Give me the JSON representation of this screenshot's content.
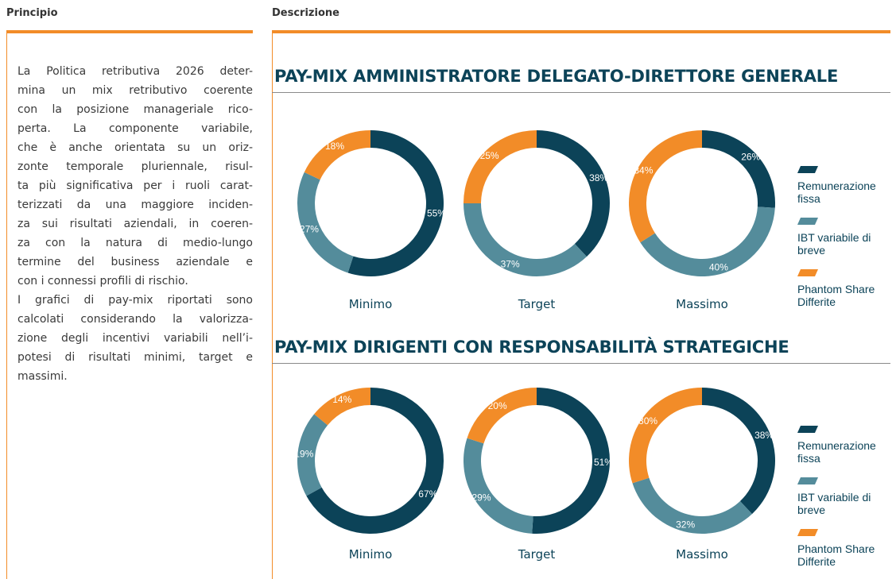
{
  "header": {
    "left": "Principio",
    "right": "Descrizione"
  },
  "text": {
    "paragraphs": [
      [
        "La Politica retributiva 2026 deter-",
        "mina un mix retributivo coerente",
        "con la posizione manageriale rico-",
        "perta. La componente variabile,",
        "che è anche orientata su un oriz-",
        "zonte temporale pluriennale, risul-",
        "ta più significativa per i ruoli carat-",
        "terizzati da una maggiore inciden-",
        "za sui risultati aziendali, in coeren-",
        "za con la natura di medio-lungo",
        "termine del business aziendale e",
        "con i connessi profili di rischio."
      ],
      [
        "I grafici di pay-mix riportati sono",
        "calcolati considerando la valorizza-",
        "zione degli incentivi variabili nell’i-",
        "potesi di risultati minimi, target e",
        "massimi."
      ]
    ]
  },
  "sections": [
    {
      "type": "pie",
      "title": "PAY-MIX AMMINISTRATORE DELEGATO-DIRETTORE GENERALE",
      "categories": [
        "Minimo",
        "Target",
        "Massimo"
      ],
      "series": [
        {
          "name": "Remunerazione fissa",
          "color": "#0c4358",
          "values": [
            55,
            38,
            26
          ],
          "value_labels": [
            "55%",
            "38%",
            "26%"
          ]
        },
        {
          "name": "IBT variabile di breve",
          "color": "#548c9b",
          "values": [
            27,
            37,
            40
          ],
          "value_labels": [
            "27%",
            "37%",
            "40%"
          ]
        },
        {
          "name": "Phantom Share Differite",
          "color": "#f28c28",
          "values": [
            18,
            25,
            34
          ],
          "value_labels": [
            "18%",
            "25%",
            "34%"
          ]
        }
      ]
    },
    {
      "type": "pie",
      "title": "PAY-MIX DIRIGENTI CON RESPONSABILITÀ STRATEGICHE",
      "categories": [
        "Minimo",
        "Target",
        "Massimo"
      ],
      "series": [
        {
          "name": "Remunerazione fissa",
          "color": "#0c4358",
          "values": [
            67,
            51,
            38
          ],
          "value_labels": [
            "67%",
            "51%",
            "38%"
          ]
        },
        {
          "name": "IBT variabile di breve",
          "color": "#548c9b",
          "values": [
            19,
            29,
            32
          ],
          "value_labels": [
            "19%",
            "29%",
            "32%"
          ]
        },
        {
          "name": "Phantom Share Differite",
          "color": "#f28c28",
          "values": [
            14,
            20,
            30
          ],
          "value_labels": [
            "14%",
            "20%",
            "30%"
          ]
        }
      ]
    }
  ]
}
